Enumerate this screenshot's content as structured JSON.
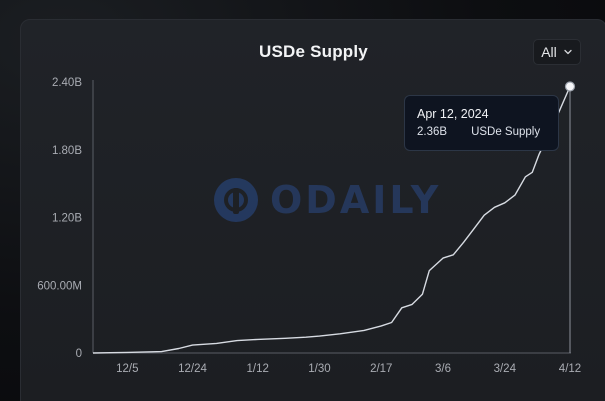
{
  "chart_data": {
    "type": "line",
    "title": "USDe Supply",
    "xlabel": "",
    "ylabel": "",
    "y_ticks": [
      "0",
      "600.00M",
      "1.20B",
      "1.80B",
      "2.40B"
    ],
    "y_tick_values": [
      0,
      600000000,
      1200000000,
      1800000000,
      2400000000
    ],
    "ylim": [
      0,
      2400000000
    ],
    "x_ticks": [
      "12/5",
      "12/24",
      "1/12",
      "1/30",
      "2/17",
      "3/6",
      "3/24",
      "4/12"
    ],
    "x_tick_dates": [
      "2023-12-05",
      "2023-12-24",
      "2024-01-12",
      "2024-01-30",
      "2024-02-17",
      "2024-03-06",
      "2024-03-24",
      "2024-04-12"
    ],
    "xlim": [
      "2023-11-25",
      "2024-04-12"
    ],
    "grid": false,
    "series": [
      {
        "color": "#d7dbe2",
        "points": [
          [
            "2023-11-25",
            0
          ],
          [
            "2023-12-05",
            5000000
          ],
          [
            "2023-12-15",
            12000000
          ],
          [
            "2023-12-20",
            40000000
          ],
          [
            "2023-12-24",
            70000000
          ],
          [
            "2023-12-31",
            85000000
          ],
          [
            "2024-01-06",
            110000000
          ],
          [
            "2024-01-12",
            120000000
          ],
          [
            "2024-01-20",
            130000000
          ],
          [
            "2024-01-26",
            140000000
          ],
          [
            "2024-01-30",
            150000000
          ],
          [
            "2024-02-05",
            170000000
          ],
          [
            "2024-02-12",
            200000000
          ],
          [
            "2024-02-17",
            240000000
          ],
          [
            "2024-02-20",
            270000000
          ],
          [
            "2024-02-23",
            400000000
          ],
          [
            "2024-02-26",
            430000000
          ],
          [
            "2024-02-29",
            520000000
          ],
          [
            "2024-03-02",
            730000000
          ],
          [
            "2024-03-06",
            840000000
          ],
          [
            "2024-03-09",
            870000000
          ],
          [
            "2024-03-12",
            980000000
          ],
          [
            "2024-03-15",
            1100000000
          ],
          [
            "2024-03-18",
            1220000000
          ],
          [
            "2024-03-21",
            1290000000
          ],
          [
            "2024-03-24",
            1330000000
          ],
          [
            "2024-03-27",
            1400000000
          ],
          [
            "2024-03-30",
            1560000000
          ],
          [
            "2024-04-01",
            1600000000
          ],
          [
            "2024-04-03",
            1760000000
          ],
          [
            "2024-04-06",
            1950000000
          ],
          [
            "2024-04-09",
            2150000000
          ],
          [
            "2024-04-12",
            2360000000
          ]
        ]
      }
    ],
    "annotations": [
      {
        "type": "tooltip",
        "date_label": "Apr 12, 2024",
        "value_label": "2.36B",
        "series_label": "USDe Supply"
      }
    ],
    "watermark": "ODAILY"
  },
  "controls": {
    "range_label": "All"
  }
}
